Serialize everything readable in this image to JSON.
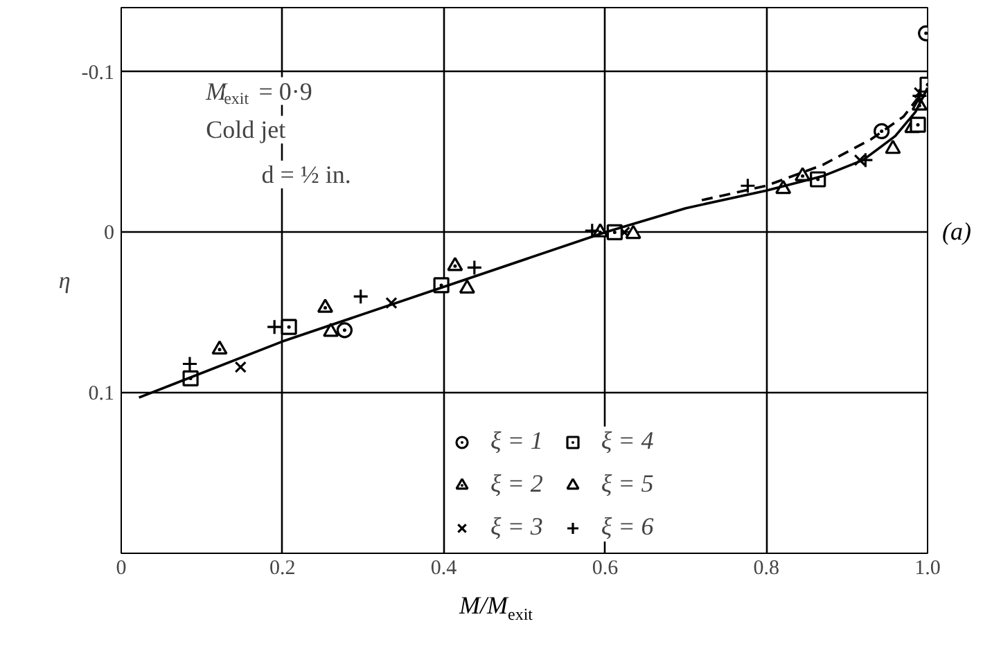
{
  "chart_data": {
    "type": "scatter",
    "xlabel": "M/M$_{exit}$",
    "ylabel": "η",
    "xlim": [
      0,
      1
    ],
    "ylim": [
      0.2,
      -0.14
    ],
    "xticks": [
      0,
      0.2,
      0.4,
      0.6,
      0.8,
      {
        "value": 1.0,
        "label": "1.0"
      }
    ],
    "yticks": [
      -0.1,
      0,
      0.1
    ],
    "grid": true,
    "legend": "bottom",
    "annotations": [
      "M$_{exit}$ = 0·9",
      "Cold jet",
      "d = ½ in.",
      "(a)"
    ],
    "series": [
      {
        "name": "ξ = 1",
        "color": "#000000",
        "marker": "circle",
        "x": [
          0.277,
          0.943,
          0.998
        ],
        "values": [
          0.061,
          -0.063,
          -0.124
        ]
      },
      {
        "name": "ξ = 2",
        "color": "#000000",
        "marker": "triangle",
        "x": [
          0.122,
          0.253,
          0.414,
          0.594,
          0.845,
          0.981,
          0.99
        ],
        "values": [
          0.073,
          0.047,
          0.021,
          0.0,
          -0.035,
          -0.065,
          -0.079
        ]
      },
      {
        "name": "ξ = 3",
        "color": "#000000",
        "marker": "cross",
        "x": [
          0.148,
          0.335,
          0.624,
          0.916,
          0.99
        ],
        "values": [
          0.084,
          0.044,
          0.0,
          -0.045,
          -0.087
        ]
      },
      {
        "name": "ξ = 4",
        "color": "#000000",
        "marker": "square",
        "x": [
          0.086,
          0.208,
          0.397,
          0.612,
          0.864,
          0.988,
          1.0
        ],
        "values": [
          0.091,
          0.059,
          0.033,
          0.0,
          -0.033,
          -0.067,
          -0.092
        ]
      },
      {
        "name": "ξ = 5",
        "color": "#000000",
        "marker": "triangle",
        "x": [
          0.26,
          0.429,
          0.635,
          0.821,
          0.957
        ],
        "values": [
          0.062,
          0.035,
          0.001,
          -0.027,
          -0.052
        ]
      },
      {
        "name": "ξ = 6",
        "color": "#000000",
        "marker": "cross",
        "x": [
          0.085,
          0.19,
          0.297,
          0.438,
          0.584,
          0.777,
          0.923,
          0.99
        ],
        "values": [
          0.082,
          0.059,
          0.04,
          0.022,
          -0.001,
          -0.029,
          -0.045,
          -0.085
        ]
      },
      {
        "type": "line",
        "color": "#000000",
        "line_style": "solid",
        "x": [
          0.022,
          0.2,
          0.4,
          0.6,
          0.7,
          0.8,
          0.87,
          0.92,
          0.96,
          0.985,
          1.0
        ],
        "values": [
          0.103,
          0.068,
          0.034,
          0.0,
          -0.015,
          -0.026,
          -0.035,
          -0.045,
          -0.06,
          -0.075,
          -0.09
        ]
      },
      {
        "type": "line",
        "color": "#000000",
        "line_style": "dashed",
        "x": [
          0.72,
          0.8,
          0.87,
          0.93,
          0.97,
          0.99
        ],
        "values": [
          -0.02,
          -0.029,
          -0.042,
          -0.058,
          -0.072,
          -0.085
        ]
      }
    ]
  }
}
